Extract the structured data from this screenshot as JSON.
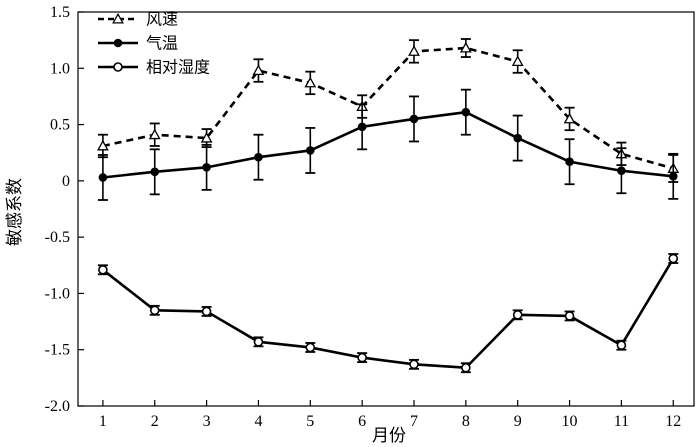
{
  "chart_data": {
    "type": "line",
    "title": "",
    "xlabel": "月份",
    "ylabel": "敏感系数",
    "x": [
      1,
      2,
      3,
      4,
      5,
      6,
      7,
      8,
      9,
      10,
      11,
      12
    ],
    "x_tick_labels": [
      "1",
      "2",
      "3",
      "4",
      "5",
      "6",
      "7",
      "8",
      "9",
      "10",
      "11",
      "12"
    ],
    "ylim": [
      -2.0,
      1.5
    ],
    "y_ticks": [
      1.5,
      1.0,
      0.5,
      0,
      -0.5,
      -1.0,
      -1.5,
      -2.0
    ],
    "y_tick_labels": [
      "1.5",
      "1.0",
      "0.5",
      "0",
      "-0.5",
      "-1.0",
      "-1.5",
      "-2.0"
    ],
    "grid": false,
    "legend_position": "top-left",
    "series": [
      {
        "name": "风速",
        "line_style": "dashed",
        "marker": "open-triangle",
        "color": "#000000",
        "values": [
          0.31,
          0.41,
          0.38,
          0.98,
          0.87,
          0.66,
          1.15,
          1.18,
          1.06,
          0.55,
          0.24,
          0.11
        ],
        "errors": [
          0.1,
          0.1,
          0.08,
          0.1,
          0.1,
          0.1,
          0.1,
          0.08,
          0.1,
          0.1,
          0.1,
          0.12
        ]
      },
      {
        "name": "气温",
        "line_style": "solid",
        "marker": "filled-circle",
        "color": "#000000",
        "values": [
          0.03,
          0.08,
          0.12,
          0.21,
          0.27,
          0.48,
          0.55,
          0.61,
          0.38,
          0.17,
          0.09,
          0.04
        ],
        "errors": [
          0.2,
          0.2,
          0.2,
          0.2,
          0.2,
          0.2,
          0.2,
          0.2,
          0.2,
          0.2,
          0.2,
          0.2
        ]
      },
      {
        "name": "相对湿度",
        "line_style": "solid",
        "marker": "open-circle",
        "color": "#000000",
        "values": [
          -0.79,
          -1.15,
          -1.16,
          -1.43,
          -1.48,
          -1.57,
          -1.63,
          -1.66,
          -1.19,
          -1.2,
          -1.46,
          -0.69
        ],
        "errors": [
          0.04,
          0.04,
          0.04,
          0.04,
          0.04,
          0.04,
          0.04,
          0.04,
          0.04,
          0.04,
          0.04,
          0.04
        ]
      }
    ]
  }
}
